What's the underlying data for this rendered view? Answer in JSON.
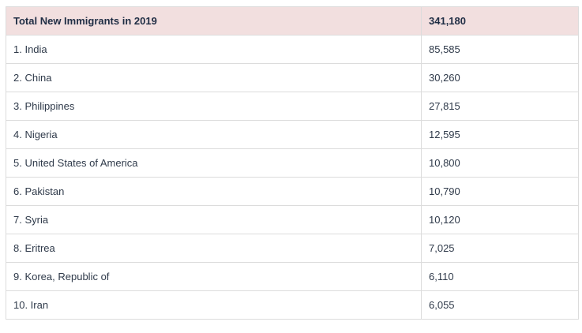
{
  "table": {
    "header": [
      "Total New Immigrants in 2019",
      "341,180"
    ],
    "rows": [
      [
        "1. India",
        "85,585"
      ],
      [
        "2. China",
        "30,260"
      ],
      [
        "3. Philippines",
        "27,815"
      ],
      [
        "4. Nigeria",
        "12,595"
      ],
      [
        "5. United States of America",
        "10,800"
      ],
      [
        "6. Pakistan",
        "10,790"
      ],
      [
        "7. Syria",
        "10,120"
      ],
      [
        "8. Eritrea",
        "7,025"
      ],
      [
        "9. Korea, Republic of",
        "6,110"
      ],
      [
        "10. Iran",
        "6,055"
      ]
    ]
  }
}
